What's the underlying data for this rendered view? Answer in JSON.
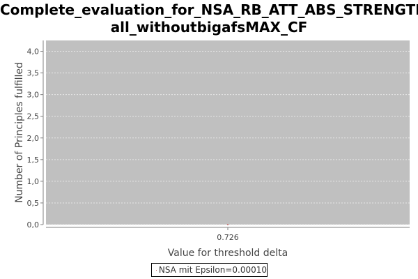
{
  "chart_data": {
    "type": "line",
    "title_line1": "Complete_evaluation_for_NSA_RB_ATT_ABS_STRENGTH_",
    "title_line2": "all_withoutbigafsMAX_CF",
    "xlabel": "Value for threshold delta",
    "ylabel": "Number of Principles fulfilled",
    "categories": [
      "0.726"
    ],
    "ylim": [
      0,
      4.25
    ],
    "yticks": [
      0.0,
      0.5,
      1.0,
      1.5,
      2.0,
      2.5,
      3.0,
      3.5,
      4.0
    ],
    "ytick_labels": [
      "0,0",
      "0,5",
      "1,0",
      "1,5",
      "2,0",
      "2,5",
      "3,0",
      "3,5",
      "4,0"
    ],
    "grid": true,
    "legend_position": "bottom-center",
    "series": [
      {
        "name": "NSA mit Epsilon=0.00010",
        "color": "#c86464",
        "values": [
          0
        ]
      }
    ],
    "colors": {
      "plot_background": "#c0c0c0",
      "gridline": "#e6e6e6"
    }
  }
}
